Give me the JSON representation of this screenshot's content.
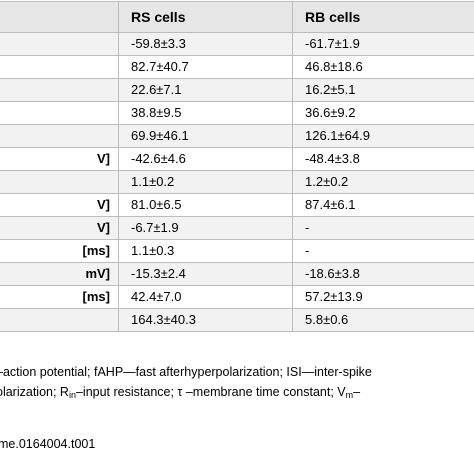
{
  "table": {
    "headers": [
      "",
      "RS cells",
      "RB cells"
    ],
    "rows": [
      {
        "label": "",
        "rs": "-59.8±3.3",
        "rb": "-61.7±1.9"
      },
      {
        "label": "",
        "rs": "82.7±40.7",
        "rb": "46.8±18.6"
      },
      {
        "label": "",
        "rs": "22.6±7.1",
        "rb": "16.2±5.1"
      },
      {
        "label": "",
        "rs": "38.8±9.5",
        "rb": "36.6±9.2"
      },
      {
        "label": "",
        "rs": "69.9±46.1",
        "rb": "126.1±64.9"
      },
      {
        "label": "V]",
        "rs": "-42.6±4.6",
        "rb": "-48.4±3.8"
      },
      {
        "label": "",
        "rs": "1.1±0.2",
        "rb": "1.2±0.2"
      },
      {
        "label": "V]",
        "rs": "81.0±6.5",
        "rb": "87.4±6.1"
      },
      {
        "label": "V]",
        "rs": "-6.7±1.9",
        "rb": "-"
      },
      {
        "label": "[ms]",
        "rs": "1.1±0.3",
        "rb": "-"
      },
      {
        "label": "mV]",
        "rs": "-15.3±2.4",
        "rb": "-18.6±3.8"
      },
      {
        "label": "[ms]",
        "rs": "42.4±7.0",
        "rb": "57.2±13.9"
      },
      {
        "label": "",
        "rs": "164.3±40.3",
        "rb": "5.8±0.6"
      }
    ]
  },
  "footnote": {
    "line1": "–action potential; fAHP—fast afterhyperpolarization; ISI—inter-spike",
    "line2_a": "olarization; R",
    "line2_sub": "in",
    "line2_b": "–input resistance; τ –membrane time constant; V",
    "line2_sub2": "m",
    "line2_c": "–"
  },
  "doi": "me.0164004.t001"
}
